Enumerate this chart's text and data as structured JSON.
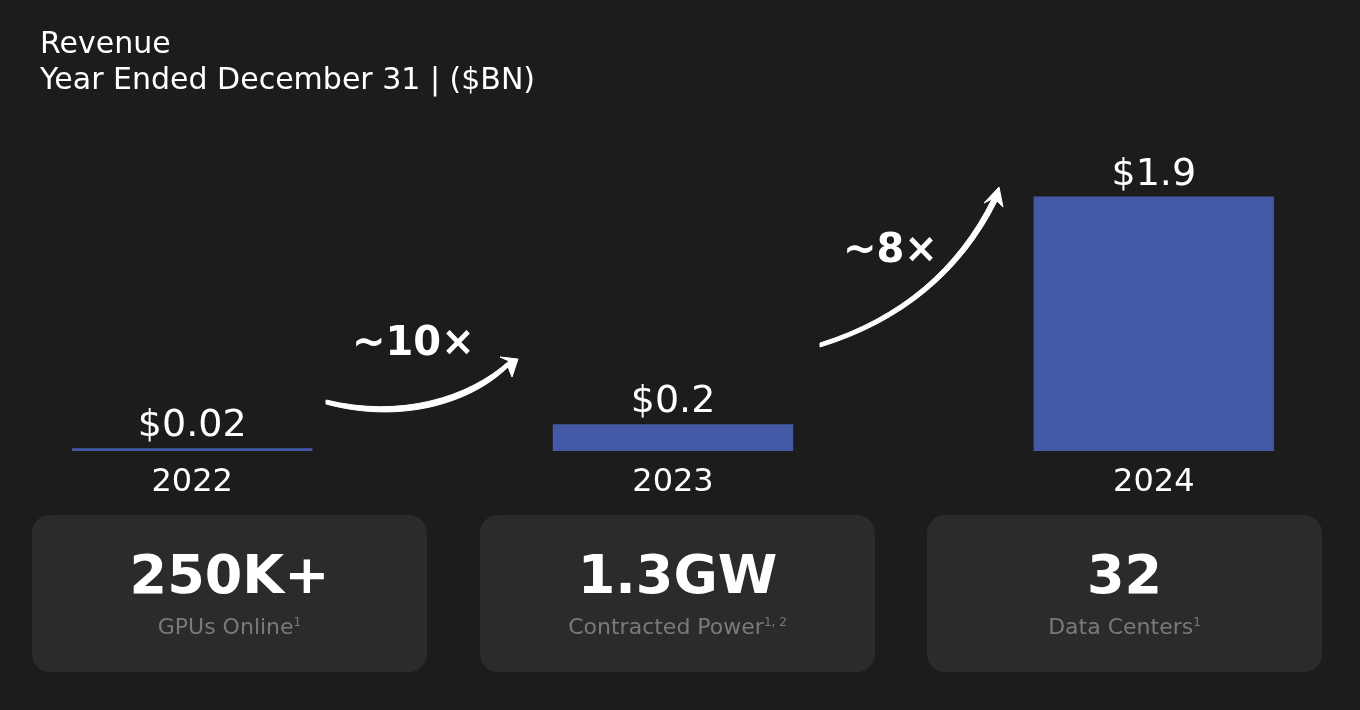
{
  "chart_data": [
    {
      "type": "bar",
      "title": "Revenue",
      "subtitle": "Year Ended December 31  |  ($BN)",
      "categories": [
        "2022",
        "2023",
        "2024"
      ],
      "values": [
        0.02,
        0.2,
        1.9
      ],
      "value_labels": [
        "$0.02",
        "$0.2",
        "$1.9"
      ],
      "color": "#4459a6",
      "annotations": [
        "~10×",
        "~8×"
      ]
    },
    {
      "type": "other",
      "title": "250K+",
      "subtitle": "GPUs Online$^{1}$"
    },
    {
      "type": "other",
      "title": "1.3GW",
      "subtitle": "Contracted Power$^{1, 2}$"
    },
    {
      "type": "other",
      "title": "32",
      "subtitle": "Data Centers$^{1}$"
    }
  ]
}
